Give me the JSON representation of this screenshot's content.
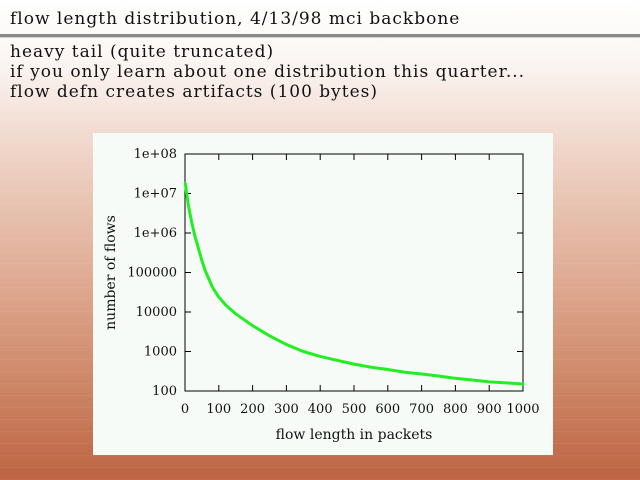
{
  "slide": {
    "title": "flow length distribution, 4/13/98 mci backbone",
    "bullets": [
      "heavy tail (quite truncated)",
      "if you only learn about one distribution this quarter...",
      "flow defn creates artifacts (100 bytes)"
    ]
  },
  "colors": {
    "series": "#22ee22",
    "panel": "#f6fbf8",
    "axis": "#000000"
  },
  "chart_data": {
    "type": "line",
    "title": "",
    "xlabel": "flow length in packets",
    "ylabel": "number of flows",
    "x_scale": "linear",
    "y_scale": "log",
    "xlim": [
      0,
      1000
    ],
    "ylim": [
      100,
      100000000
    ],
    "grid": false,
    "legend": "none",
    "x_ticks": [
      0,
      100,
      200,
      300,
      400,
      500,
      600,
      700,
      800,
      900,
      1000
    ],
    "x_tick_labels": [
      "0",
      "100",
      "200",
      "300",
      "400",
      "500",
      "600",
      "700",
      "800",
      "900",
      "1000"
    ],
    "y_ticks": [
      100,
      1000,
      10000,
      100000,
      1000000,
      10000000,
      100000000
    ],
    "y_tick_labels": [
      "100",
      "1000",
      "10000",
      "100000",
      "1e+06",
      "1e+07",
      "1e+08"
    ],
    "series": [
      {
        "x": [
          1,
          5,
          10,
          20,
          30,
          40,
          50,
          60,
          70,
          80,
          90,
          100,
          120,
          150,
          200,
          250,
          300,
          350,
          400,
          450,
          500,
          550,
          600,
          650,
          700,
          750,
          800,
          850,
          900,
          950,
          1000
        ],
        "y": [
          18000000,
          10000000,
          5000000,
          1800000,
          800000,
          400000,
          200000,
          110000,
          70000,
          45000,
          32000,
          24000,
          15000,
          9000,
          4500,
          2500,
          1500,
          1000,
          750,
          600,
          480,
          400,
          350,
          300,
          270,
          240,
          210,
          190,
          170,
          160,
          150
        ]
      }
    ]
  }
}
